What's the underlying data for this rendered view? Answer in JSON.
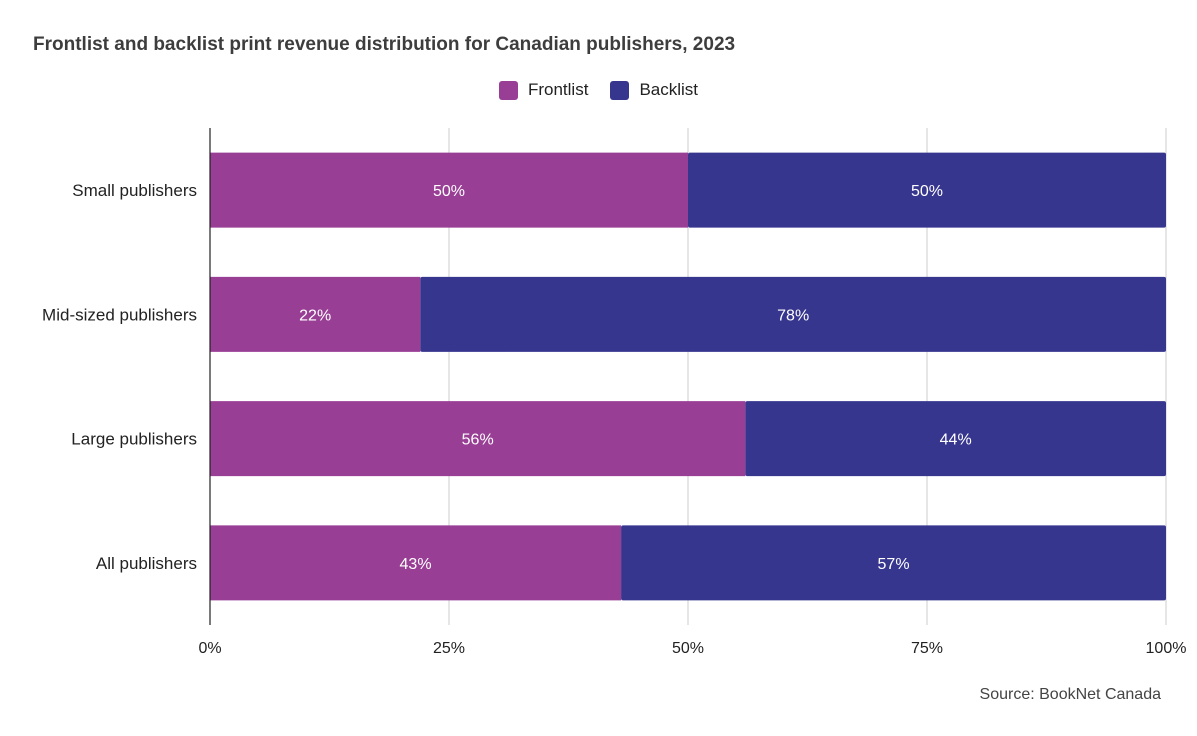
{
  "title": "Frontlist and backlist print revenue distribution for Canadian publishers, 2023",
  "source": "Source: BookNet Canada",
  "colors": {
    "frontlist": "#993e95",
    "backlist": "#37368f",
    "grid": "#cccccc",
    "axis": "#222222"
  },
  "chart_data": {
    "type": "bar",
    "orientation": "horizontal",
    "stacked": true,
    "percent_stacked": true,
    "categories": [
      "Small publishers",
      "Mid-sized publishers",
      "Large publishers",
      "All publishers"
    ],
    "series": [
      {
        "name": "Frontlist",
        "values": [
          50,
          22,
          56,
          43
        ],
        "labels": [
          "50%",
          "22%",
          "56%",
          "43%"
        ],
        "color": "#993e95"
      },
      {
        "name": "Backlist",
        "values": [
          50,
          78,
          44,
          57
        ],
        "labels": [
          "50%",
          "78%",
          "44%",
          "57%"
        ],
        "color": "#37368f"
      }
    ],
    "xlim": [
      0,
      100
    ],
    "xticks": [
      "0%",
      "25%",
      "50%",
      "75%",
      "100%"
    ],
    "grid": true,
    "legend_position": "top-center"
  }
}
